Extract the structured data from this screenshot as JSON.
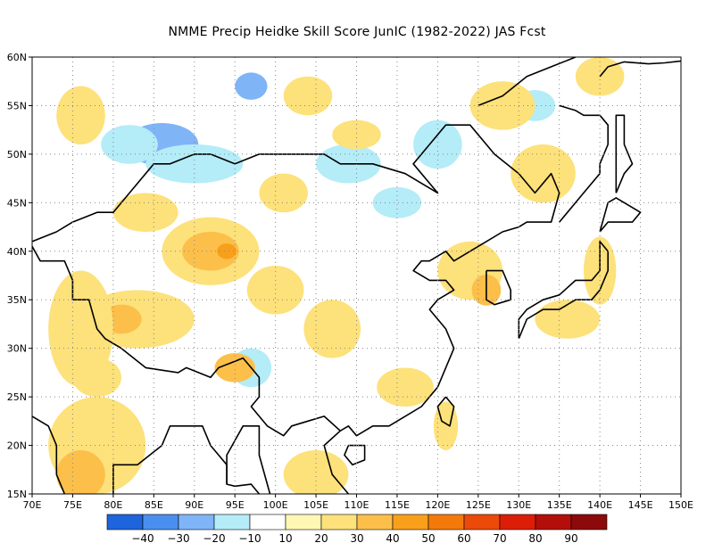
{
  "title": "NMME Precip Heidke Skill Score JunIC (1982-2022) JAS Fcst",
  "map": {
    "lon_range": [
      70,
      150
    ],
    "lat_range": [
      15,
      60
    ],
    "x_ticks": [
      "70E",
      "75E",
      "80E",
      "85E",
      "90E",
      "95E",
      "100E",
      "105E",
      "110E",
      "115E",
      "120E",
      "125E",
      "130E",
      "135E",
      "140E",
      "145E",
      "150E"
    ],
    "y_ticks": [
      "15N",
      "20N",
      "25N",
      "30N",
      "35N",
      "40N",
      "45N",
      "50N",
      "55N",
      "60N"
    ],
    "grid": "dotted"
  },
  "colorbar": {
    "colors": [
      "#1e64dc",
      "#4a8ff0",
      "#7fb4f7",
      "#b4ecf8",
      "#ffffff",
      "#fff7b4",
      "#fde17a",
      "#fcbf4a",
      "#f8a01a",
      "#f37a0a",
      "#ec4a08",
      "#dc1e08",
      "#b40e0a",
      "#8c0a0a"
    ],
    "labels": [
      "-40",
      "-30",
      "-20",
      "-10",
      "10",
      "20",
      "30",
      "40",
      "50",
      "60",
      "70",
      "80",
      "90"
    ]
  },
  "field": {
    "description_levels": "shading bins in Heidke skill score",
    "patches": [
      {
        "lon": 86,
        "lat": 51,
        "rx": 4.5,
        "ry": 2.2,
        "level": "-20"
      },
      {
        "lon": 82,
        "lat": 51,
        "rx": 3.5,
        "ry": 2.0,
        "level": "-10"
      },
      {
        "lon": 97,
        "lat": 57,
        "rx": 2.0,
        "ry": 1.4,
        "level": "-20"
      },
      {
        "lon": 115,
        "lat": 45,
        "rx": 3.0,
        "ry": 1.6,
        "level": "-10"
      },
      {
        "lon": 109,
        "lat": 49,
        "rx": 4.0,
        "ry": 2.0,
        "level": "-10"
      },
      {
        "lon": 120,
        "lat": 51,
        "rx": 3.0,
        "ry": 2.5,
        "level": "-10"
      },
      {
        "lon": 90,
        "lat": 49,
        "rx": 6.0,
        "ry": 2.0,
        "level": "-10"
      },
      {
        "lon": 97,
        "lat": 28,
        "rx": 2.5,
        "ry": 2.0,
        "level": "-10"
      },
      {
        "lon": 132,
        "lat": 55,
        "rx": 2.5,
        "ry": 1.6,
        "level": "-10"
      },
      {
        "lon": 92,
        "lat": 40,
        "rx": 6.0,
        "ry": 3.5,
        "level": "20"
      },
      {
        "lon": 92,
        "lat": 40,
        "rx": 3.5,
        "ry": 2.0,
        "level": "30"
      },
      {
        "lon": 94,
        "lat": 40,
        "rx": 1.2,
        "ry": 0.8,
        "level": "40"
      },
      {
        "lon": 83,
        "lat": 33,
        "rx": 7.0,
        "ry": 3.0,
        "level": "20"
      },
      {
        "lon": 81,
        "lat": 33,
        "rx": 2.5,
        "ry": 1.5,
        "level": "30"
      },
      {
        "lon": 76,
        "lat": 32,
        "rx": 4.0,
        "ry": 6.0,
        "level": "20"
      },
      {
        "lon": 78,
        "lat": 20,
        "rx": 6.0,
        "ry": 5.0,
        "level": "20"
      },
      {
        "lon": 76,
        "lat": 17,
        "rx": 3.0,
        "ry": 2.5,
        "level": "30"
      },
      {
        "lon": 78,
        "lat": 27,
        "rx": 3.0,
        "ry": 2.0,
        "level": "20"
      },
      {
        "lon": 100,
        "lat": 36,
        "rx": 3.5,
        "ry": 2.5,
        "level": "20"
      },
      {
        "lon": 95,
        "lat": 28,
        "rx": 2.5,
        "ry": 1.5,
        "level": "30"
      },
      {
        "lon": 107,
        "lat": 32,
        "rx": 3.5,
        "ry": 3.0,
        "level": "20"
      },
      {
        "lon": 105,
        "lat": 17,
        "rx": 4.0,
        "ry": 2.5,
        "level": "20"
      },
      {
        "lon": 116,
        "lat": 26,
        "rx": 3.5,
        "ry": 2.0,
        "level": "20"
      },
      {
        "lon": 124,
        "lat": 38,
        "rx": 4.0,
        "ry": 3.0,
        "level": "20"
      },
      {
        "lon": 126,
        "lat": 36,
        "rx": 1.8,
        "ry": 1.6,
        "level": "30"
      },
      {
        "lon": 128,
        "lat": 55,
        "rx": 4.0,
        "ry": 2.5,
        "level": "20"
      },
      {
        "lon": 133,
        "lat": 48,
        "rx": 4.0,
        "ry": 3.0,
        "level": "20"
      },
      {
        "lon": 76,
        "lat": 54,
        "rx": 3.0,
        "ry": 3.0,
        "level": "20"
      },
      {
        "lon": 104,
        "lat": 56,
        "rx": 3.0,
        "ry": 2.0,
        "level": "20"
      },
      {
        "lon": 110,
        "lat": 52,
        "rx": 3.0,
        "ry": 1.5,
        "level": "20"
      },
      {
        "lon": 101,
        "lat": 46,
        "rx": 3.0,
        "ry": 2.0,
        "level": "20"
      },
      {
        "lon": 136,
        "lat": 33,
        "rx": 4.0,
        "ry": 2.0,
        "level": "20"
      },
      {
        "lon": 140,
        "lat": 38,
        "rx": 2.0,
        "ry": 3.5,
        "level": "20"
      },
      {
        "lon": 121,
        "lat": 22,
        "rx": 1.5,
        "ry": 2.5,
        "level": "20"
      },
      {
        "lon": 84,
        "lat": 44,
        "rx": 4.0,
        "ry": 2.0,
        "level": "20"
      },
      {
        "lon": 140,
        "lat": 58,
        "rx": 3.0,
        "ry": 2.0,
        "level": "20"
      }
    ]
  },
  "coastline": [
    [
      [
        70,
        41
      ],
      [
        73,
        42
      ],
      [
        75,
        43
      ],
      [
        78,
        44
      ],
      [
        80,
        44
      ],
      [
        82,
        46
      ],
      [
        85,
        49
      ],
      [
        87,
        49
      ],
      [
        90,
        50
      ],
      [
        92,
        50
      ],
      [
        95,
        49
      ],
      [
        98,
        50
      ],
      [
        100,
        50
      ],
      [
        103,
        50
      ],
      [
        106,
        50
      ],
      [
        108,
        49
      ],
      [
        112,
        49
      ],
      [
        116,
        48
      ],
      [
        118,
        47
      ],
      [
        120,
        46
      ],
      [
        118,
        48
      ],
      [
        117,
        49
      ],
      [
        119,
        51
      ],
      [
        121,
        53
      ],
      [
        124,
        53
      ],
      [
        127,
        50
      ],
      [
        130,
        48
      ],
      [
        132,
        46
      ],
      [
        134,
        48
      ],
      [
        135,
        46
      ],
      [
        134,
        43
      ],
      [
        131,
        43
      ],
      [
        130,
        42.5
      ],
      [
        128,
        42
      ],
      [
        126,
        41
      ],
      [
        124,
        40
      ],
      [
        122,
        39
      ],
      [
        121,
        40
      ],
      [
        119,
        39
      ],
      [
        118,
        39
      ],
      [
        117,
        38
      ],
      [
        119,
        37
      ],
      [
        121,
        37
      ],
      [
        122,
        36
      ],
      [
        120,
        35
      ],
      [
        119,
        34
      ],
      [
        121,
        32
      ],
      [
        122,
        30
      ],
      [
        121,
        28
      ],
      [
        120,
        26
      ],
      [
        118,
        24
      ],
      [
        116,
        23
      ],
      [
        114,
        22
      ],
      [
        112,
        22
      ],
      [
        110,
        21
      ],
      [
        109,
        22
      ],
      [
        108,
        21.5
      ],
      [
        106,
        20
      ],
      [
        107,
        17
      ],
      [
        109,
        15
      ]
    ],
    [
      [
        70,
        23
      ],
      [
        72,
        22
      ],
      [
        73,
        20
      ],
      [
        73,
        17
      ],
      [
        74,
        15
      ]
    ],
    [
      [
        80,
        15
      ],
      [
        80,
        18
      ],
      [
        83,
        18
      ],
      [
        86,
        20
      ],
      [
        87,
        22
      ],
      [
        89,
        22
      ],
      [
        91,
        22
      ],
      [
        92,
        20
      ],
      [
        94,
        18
      ],
      [
        94,
        16
      ],
      [
        95,
        15.8
      ],
      [
        97,
        16
      ],
      [
        98,
        15
      ]
    ],
    [
      [
        70,
        40.5
      ],
      [
        71,
        39
      ],
      [
        74,
        39
      ],
      [
        75,
        37
      ],
      [
        75,
        35
      ],
      [
        77,
        35
      ],
      [
        78,
        32
      ],
      [
        79,
        31
      ],
      [
        81,
        30
      ],
      [
        84,
        28
      ],
      [
        88,
        27.5
      ],
      [
        89,
        28
      ],
      [
        92,
        27
      ],
      [
        93,
        28
      ],
      [
        96,
        29
      ],
      [
        97,
        28
      ],
      [
        98,
        27
      ],
      [
        98,
        25
      ],
      [
        97,
        24
      ],
      [
        99,
        22
      ],
      [
        101,
        21
      ],
      [
        102,
        22
      ],
      [
        104,
        22.5
      ],
      [
        106,
        23
      ],
      [
        108,
        21.5
      ]
    ],
    [
      [
        94,
        16
      ],
      [
        94,
        19
      ],
      [
        96,
        22
      ],
      [
        98,
        22
      ],
      [
        98,
        19
      ],
      [
        99,
        16
      ],
      [
        100,
        13
      ]
    ],
    [
      [
        126,
        38
      ],
      [
        128,
        38
      ],
      [
        129,
        36
      ],
      [
        129,
        35
      ],
      [
        127,
        34.5
      ],
      [
        126,
        35
      ],
      [
        126,
        37
      ],
      [
        126,
        38
      ]
    ],
    [
      [
        130,
        31
      ],
      [
        131,
        33
      ],
      [
        133,
        34
      ],
      [
        135,
        34
      ],
      [
        137,
        35
      ],
      [
        139,
        35
      ],
      [
        140,
        36
      ],
      [
        141,
        38
      ],
      [
        141,
        40
      ],
      [
        140,
        41
      ],
      [
        140,
        38
      ],
      [
        139,
        37
      ],
      [
        137,
        37
      ],
      [
        135,
        35.5
      ],
      [
        133,
        35
      ],
      [
        131,
        34
      ],
      [
        130,
        33
      ],
      [
        130,
        31
      ]
    ],
    [
      [
        140,
        42
      ],
      [
        141,
        43
      ],
      [
        144,
        43
      ],
      [
        145,
        44
      ],
      [
        142,
        45.5
      ],
      [
        141,
        45
      ],
      [
        140,
        42
      ]
    ],
    [
      [
        142,
        46
      ],
      [
        143,
        48
      ],
      [
        144,
        49
      ],
      [
        143,
        51
      ],
      [
        143,
        54
      ],
      [
        142,
        54
      ],
      [
        142,
        50
      ],
      [
        142,
        46
      ]
    ],
    [
      [
        121,
        25
      ],
      [
        122,
        24
      ],
      [
        121.5,
        22
      ],
      [
        120.5,
        22.5
      ],
      [
        120,
        24
      ],
      [
        121,
        25
      ]
    ],
    [
      [
        109,
        20
      ],
      [
        111,
        20
      ],
      [
        111,
        18.5
      ],
      [
        109.5,
        18
      ],
      [
        108.5,
        19
      ],
      [
        109,
        20
      ]
    ],
    [
      [
        140,
        58
      ],
      [
        141,
        59
      ],
      [
        143,
        59.5
      ],
      [
        146,
        59.3
      ],
      [
        148,
        59.4
      ],
      [
        150,
        59.6
      ]
    ],
    [
      [
        135,
        55
      ],
      [
        137,
        54.5
      ],
      [
        138,
        54
      ],
      [
        140,
        54
      ],
      [
        141,
        53
      ],
      [
        141,
        51
      ],
      [
        140,
        49
      ],
      [
        140,
        48
      ],
      [
        138,
        46
      ],
      [
        137,
        45
      ],
      [
        136,
        44
      ],
      [
        135,
        43
      ]
    ],
    [
      [
        125,
        55
      ],
      [
        128,
        56
      ],
      [
        131,
        58
      ],
      [
        134,
        59
      ],
      [
        137,
        60
      ]
    ]
  ]
}
